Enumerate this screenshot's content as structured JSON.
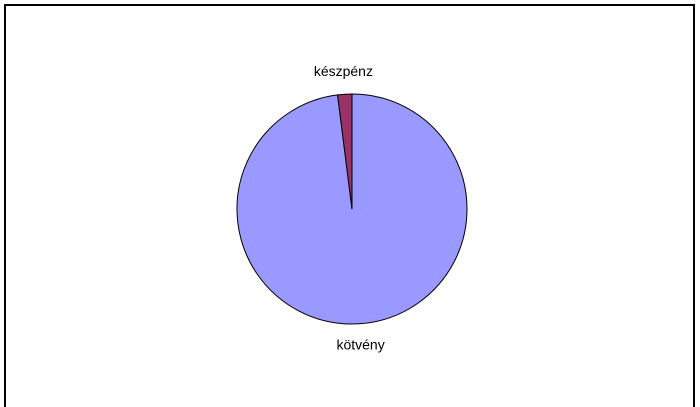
{
  "chart_data": {
    "type": "pie",
    "categories": [
      "kötvény",
      "készpénz"
    ],
    "values": [
      98,
      2
    ],
    "colors": [
      "#9999ff",
      "#993366"
    ]
  }
}
